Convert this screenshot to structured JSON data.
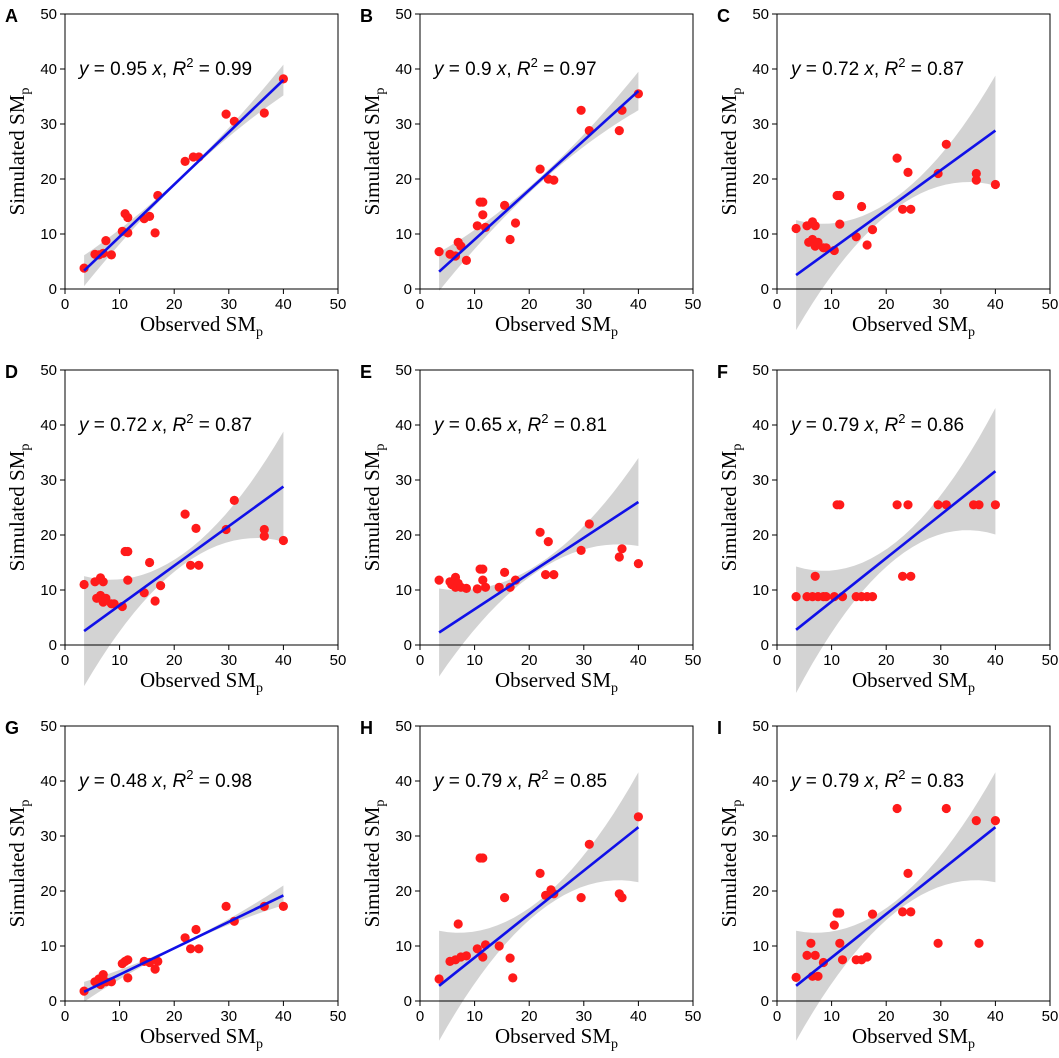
{
  "figure": {
    "panel_count": 9
  },
  "chart_data": [
    {
      "type": "scatter",
      "panel": "A",
      "title": "",
      "xlabel": "Observed SM",
      "xlabel_sub": "p",
      "ylabel": "Simulated SM",
      "ylabel_sub": "p",
      "xlim": [
        0,
        50
      ],
      "ylim": [
        0,
        50
      ],
      "ticks": [
        0,
        10,
        20,
        30,
        40,
        50
      ],
      "grid": false,
      "slope": 0.95,
      "r2": "0.99",
      "band": [
        0.3,
        2.8
      ],
      "eq_parts": {
        "y": "y",
        "mid1": " = 0.95 ",
        "x": "x",
        "mid2": ", ",
        "R": "R",
        "sup": "2",
        "tail": " = 0.99"
      },
      "points": [
        [
          3.5,
          3.8
        ],
        [
          5.5,
          6.3
        ],
        [
          6.2,
          6.2
        ],
        [
          7.5,
          8.8
        ],
        [
          7.0,
          6.5
        ],
        [
          8.5,
          6.2
        ],
        [
          10.5,
          10.5
        ],
        [
          11.0,
          13.7
        ],
        [
          11.5,
          13.0
        ],
        [
          11.5,
          10.2
        ],
        [
          14.5,
          12.8
        ],
        [
          15.5,
          13.2
        ],
        [
          16.5,
          10.2
        ],
        [
          17.0,
          17.0
        ],
        [
          22.0,
          23.2
        ],
        [
          23.5,
          24.0
        ],
        [
          24.5,
          24.0
        ],
        [
          29.5,
          31.8
        ],
        [
          31.0,
          30.5
        ],
        [
          36.5,
          32.0
        ],
        [
          40.0,
          38.2
        ]
      ]
    },
    {
      "type": "scatter",
      "panel": "B",
      "title": "",
      "xlabel": "Observed SM",
      "xlabel_sub": "p",
      "ylabel": "Simulated SM",
      "ylabel_sub": "p",
      "xlim": [
        0,
        50
      ],
      "ylim": [
        0,
        50
      ],
      "ticks": [
        0,
        10,
        20,
        30,
        40,
        50
      ],
      "grid": false,
      "slope": 0.9,
      "r2": "0.97",
      "band": [
        0.5,
        3.5
      ],
      "eq_parts": {
        "y": "y",
        "mid1": " = 0.9 ",
        "x": "x",
        "mid2": ", ",
        "R": "R",
        "sup": "2",
        "tail": " = 0.97"
      },
      "points": [
        [
          3.5,
          6.8
        ],
        [
          5.5,
          6.3
        ],
        [
          6.5,
          6.0
        ],
        [
          7.0,
          8.5
        ],
        [
          7.5,
          7.8
        ],
        [
          8.5,
          5.2
        ],
        [
          10.5,
          11.5
        ],
        [
          11.0,
          15.8
        ],
        [
          11.5,
          15.8
        ],
        [
          11.5,
          13.5
        ],
        [
          12.0,
          11.2
        ],
        [
          15.5,
          15.2
        ],
        [
          16.5,
          9.0
        ],
        [
          17.5,
          12.0
        ],
        [
          22.0,
          21.8
        ],
        [
          23.5,
          20.0
        ],
        [
          24.5,
          19.8
        ],
        [
          29.5,
          32.5
        ],
        [
          31.0,
          28.8
        ],
        [
          36.5,
          28.8
        ],
        [
          37.0,
          32.5
        ],
        [
          40.0,
          35.5
        ]
      ]
    },
    {
      "type": "scatter",
      "panel": "C",
      "title": "",
      "xlabel": "Observed SM",
      "xlabel_sub": "p",
      "ylabel": "Simulated SM",
      "ylabel_sub": "p",
      "xlim": [
        0,
        50
      ],
      "ylim": [
        0,
        50
      ],
      "ticks": [
        0,
        10,
        20,
        30,
        40,
        50
      ],
      "grid": false,
      "slope": 0.72,
      "r2": "0.87",
      "band": [
        1.0,
        10.0
      ],
      "eq_parts": {
        "y": "y",
        "mid1": " = 0.72 ",
        "x": "x",
        "mid2": ", ",
        "R": "R",
        "sup": "2",
        "tail": " = 0.87"
      },
      "points": [
        [
          3.5,
          11.0
        ],
        [
          5.5,
          11.5
        ],
        [
          5.8,
          8.5
        ],
        [
          6.5,
          12.2
        ],
        [
          6.5,
          9.0
        ],
        [
          7.0,
          11.5
        ],
        [
          7.0,
          7.8
        ],
        [
          7.5,
          8.5
        ],
        [
          8.5,
          7.5
        ],
        [
          9.0,
          7.5
        ],
        [
          10.5,
          7.0
        ],
        [
          11.0,
          17.0
        ],
        [
          11.5,
          17.0
        ],
        [
          11.5,
          11.8
        ],
        [
          14.5,
          9.5
        ],
        [
          15.5,
          15.0
        ],
        [
          16.5,
          8.0
        ],
        [
          17.5,
          10.8
        ],
        [
          22.0,
          23.8
        ],
        [
          23.0,
          14.5
        ],
        [
          24.0,
          21.2
        ],
        [
          24.5,
          14.5
        ],
        [
          29.5,
          21.0
        ],
        [
          31.0,
          26.3
        ],
        [
          36.5,
          19.8
        ],
        [
          36.5,
          21.0
        ],
        [
          40.0,
          19.0
        ]
      ]
    },
    {
      "type": "scatter",
      "panel": "D",
      "title": "",
      "xlabel": "Observed SM",
      "xlabel_sub": "p",
      "ylabel": "Simulated SM",
      "ylabel_sub": "p",
      "xlim": [
        0,
        50
      ],
      "ylim": [
        0,
        50
      ],
      "ticks": [
        0,
        10,
        20,
        30,
        40,
        50
      ],
      "grid": false,
      "slope": 0.72,
      "r2": "0.87",
      "band": [
        1.0,
        10.0
      ],
      "eq_parts": {
        "y": "y",
        "mid1": " = 0.72 ",
        "x": "x",
        "mid2": ", ",
        "R": "R",
        "sup": "2",
        "tail": " = 0.87"
      },
      "points": [
        [
          3.5,
          11.0
        ],
        [
          5.5,
          11.5
        ],
        [
          5.8,
          8.5
        ],
        [
          6.5,
          12.2
        ],
        [
          6.5,
          9.0
        ],
        [
          7.0,
          11.5
        ],
        [
          7.0,
          7.8
        ],
        [
          7.5,
          8.5
        ],
        [
          8.5,
          7.5
        ],
        [
          9.0,
          7.5
        ],
        [
          10.5,
          7.0
        ],
        [
          11.0,
          17.0
        ],
        [
          11.5,
          17.0
        ],
        [
          11.5,
          11.8
        ],
        [
          14.5,
          9.5
        ],
        [
          15.5,
          15.0
        ],
        [
          16.5,
          8.0
        ],
        [
          17.5,
          10.8
        ],
        [
          22.0,
          23.8
        ],
        [
          23.0,
          14.5
        ],
        [
          24.0,
          21.2
        ],
        [
          24.5,
          14.5
        ],
        [
          29.5,
          21.0
        ],
        [
          31.0,
          26.3
        ],
        [
          36.5,
          19.8
        ],
        [
          36.5,
          21.0
        ],
        [
          40.0,
          19.0
        ]
      ]
    },
    {
      "type": "scatter",
      "panel": "E",
      "title": "",
      "xlabel": "Observed SM",
      "xlabel_sub": "p",
      "ylabel": "Simulated SM",
      "ylabel_sub": "p",
      "xlim": [
        0,
        50
      ],
      "ylim": [
        0,
        50
      ],
      "ticks": [
        0,
        10,
        20,
        30,
        40,
        50
      ],
      "grid": false,
      "slope": 0.65,
      "r2": "0.81",
      "band": [
        0.6,
        8.0
      ],
      "eq_parts": {
        "y": "y",
        "mid1": " = 0.65 ",
        "x": "x",
        "mid2": ", ",
        "R": "R",
        "sup": "2",
        "tail": " = 0.81"
      },
      "points": [
        [
          3.5,
          11.8
        ],
        [
          5.5,
          11.5
        ],
        [
          5.8,
          11.0
        ],
        [
          6.5,
          12.3
        ],
        [
          6.5,
          10.5
        ],
        [
          7.0,
          11.2
        ],
        [
          7.5,
          10.5
        ],
        [
          8.5,
          10.3
        ],
        [
          10.5,
          10.2
        ],
        [
          11.0,
          13.8
        ],
        [
          11.5,
          13.8
        ],
        [
          11.5,
          11.8
        ],
        [
          12.0,
          10.5
        ],
        [
          14.5,
          10.5
        ],
        [
          15.5,
          13.2
        ],
        [
          16.5,
          10.5
        ],
        [
          17.5,
          11.8
        ],
        [
          22.0,
          20.5
        ],
        [
          23.0,
          12.8
        ],
        [
          23.5,
          18.8
        ],
        [
          24.5,
          12.8
        ],
        [
          29.5,
          17.2
        ],
        [
          31.0,
          22.0
        ],
        [
          36.5,
          16.0
        ],
        [
          37.0,
          17.5
        ],
        [
          40.0,
          14.8
        ]
      ]
    },
    {
      "type": "scatter",
      "panel": "F",
      "title": "",
      "xlabel": "Observed SM",
      "xlabel_sub": "p",
      "ylabel": "Simulated SM",
      "ylabel_sub": "p",
      "xlim": [
        0,
        50
      ],
      "ylim": [
        0,
        50
      ],
      "ticks": [
        0,
        10,
        20,
        30,
        40,
        50
      ],
      "grid": false,
      "slope": 0.79,
      "r2": "0.86",
      "band": [
        1.5,
        11.5
      ],
      "eq_parts": {
        "y": "y",
        "mid1": " = 0.79 ",
        "x": "x",
        "mid2": ", ",
        "R": "R",
        "sup": "2",
        "tail": " = 0.86"
      },
      "points": [
        [
          3.5,
          8.8
        ],
        [
          5.5,
          8.8
        ],
        [
          6.5,
          8.8
        ],
        [
          7.0,
          12.5
        ],
        [
          7.5,
          8.8
        ],
        [
          8.5,
          8.8
        ],
        [
          9.0,
          8.8
        ],
        [
          10.5,
          8.8
        ],
        [
          11.0,
          25.5
        ],
        [
          11.5,
          25.5
        ],
        [
          12.0,
          8.8
        ],
        [
          14.5,
          8.8
        ],
        [
          15.5,
          8.8
        ],
        [
          16.5,
          8.8
        ],
        [
          17.5,
          8.8
        ],
        [
          22.0,
          25.5
        ],
        [
          23.0,
          12.5
        ],
        [
          24.0,
          25.5
        ],
        [
          24.5,
          12.5
        ],
        [
          29.5,
          25.5
        ],
        [
          31.0,
          25.5
        ],
        [
          36.0,
          25.5
        ],
        [
          37.0,
          25.5
        ],
        [
          40.0,
          25.5
        ]
      ]
    },
    {
      "type": "scatter",
      "panel": "G",
      "title": "",
      "xlabel": "Observed SM",
      "xlabel_sub": "p",
      "ylabel": "Simulated SM",
      "ylabel_sub": "p",
      "xlim": [
        0,
        50
      ],
      "ylim": [
        0,
        50
      ],
      "ticks": [
        0,
        10,
        20,
        30,
        40,
        50
      ],
      "grid": false,
      "slope": 0.48,
      "r2": "0.98",
      "band": [
        0.2,
        1.8
      ],
      "eq_parts": {
        "y": "y",
        "mid1": " = 0.48 ",
        "x": "x",
        "mid2": ", ",
        "R": "R",
        "sup": "2",
        "tail": " = 0.98"
      },
      "points": [
        [
          3.5,
          1.8
        ],
        [
          5.5,
          3.5
        ],
        [
          6.2,
          4.0
        ],
        [
          6.5,
          3.0
        ],
        [
          7.0,
          4.8
        ],
        [
          7.5,
          3.5
        ],
        [
          8.5,
          3.5
        ],
        [
          10.5,
          6.8
        ],
        [
          11.0,
          7.2
        ],
        [
          11.5,
          7.5
        ],
        [
          11.5,
          4.2
        ],
        [
          14.5,
          7.2
        ],
        [
          15.5,
          7.0
        ],
        [
          16.5,
          5.8
        ],
        [
          17.0,
          7.2
        ],
        [
          22.0,
          11.5
        ],
        [
          23.0,
          9.5
        ],
        [
          24.0,
          13.0
        ],
        [
          24.5,
          9.5
        ],
        [
          29.5,
          17.2
        ],
        [
          31.0,
          14.5
        ],
        [
          36.5,
          17.2
        ],
        [
          40.0,
          17.2
        ]
      ]
    },
    {
      "type": "scatter",
      "panel": "H",
      "title": "",
      "xlabel": "Observed SM",
      "xlabel_sub": "p",
      "ylabel": "Simulated SM",
      "ylabel_sub": "p",
      "xlim": [
        0,
        50
      ],
      "ylim": [
        0,
        50
      ],
      "ticks": [
        0,
        10,
        20,
        30,
        40,
        50
      ],
      "grid": false,
      "slope": 0.79,
      "r2": "0.85",
      "band": [
        1.0,
        10.0
      ],
      "eq_parts": {
        "y": "y",
        "mid1": " = 0.79 ",
        "x": "x",
        "mid2": ", ",
        "R": "R",
        "sup": "2",
        "tail": " = 0.85"
      },
      "points": [
        [
          3.5,
          4.0
        ],
        [
          5.5,
          7.2
        ],
        [
          6.5,
          7.5
        ],
        [
          7.0,
          14.0
        ],
        [
          7.5,
          8.0
        ],
        [
          8.5,
          8.2
        ],
        [
          10.5,
          9.5
        ],
        [
          11.0,
          26.0
        ],
        [
          11.5,
          26.0
        ],
        [
          11.5,
          8.0
        ],
        [
          12.0,
          10.2
        ],
        [
          14.5,
          10.0
        ],
        [
          15.5,
          18.8
        ],
        [
          16.5,
          7.8
        ],
        [
          17.0,
          4.2
        ],
        [
          22.0,
          23.2
        ],
        [
          23.0,
          19.2
        ],
        [
          24.0,
          20.2
        ],
        [
          24.5,
          19.5
        ],
        [
          29.5,
          18.8
        ],
        [
          31.0,
          28.5
        ],
        [
          36.5,
          19.5
        ],
        [
          37.0,
          18.8
        ],
        [
          40.0,
          33.5
        ]
      ]
    },
    {
      "type": "scatter",
      "panel": "I",
      "title": "",
      "xlabel": "Observed SM",
      "xlabel_sub": "p",
      "ylabel": "Simulated SM",
      "ylabel_sub": "p",
      "xlim": [
        0,
        50
      ],
      "ylim": [
        0,
        50
      ],
      "ticks": [
        0,
        10,
        20,
        30,
        40,
        50
      ],
      "grid": false,
      "slope": 0.79,
      "r2": "0.83",
      "band": [
        1.0,
        10.0
      ],
      "eq_parts": {
        "y": "y",
        "mid1": " = 0.79 ",
        "x": "x",
        "mid2": ", ",
        "R": "R",
        "sup": "2",
        "tail": " = 0.83"
      },
      "points": [
        [
          3.5,
          4.3
        ],
        [
          5.5,
          8.3
        ],
        [
          6.2,
          10.5
        ],
        [
          6.5,
          4.5
        ],
        [
          7.0,
          8.3
        ],
        [
          7.5,
          4.5
        ],
        [
          8.5,
          7.0
        ],
        [
          10.5,
          13.8
        ],
        [
          11.0,
          16.0
        ],
        [
          11.5,
          16.0
        ],
        [
          11.5,
          10.5
        ],
        [
          12.0,
          7.5
        ],
        [
          14.5,
          7.5
        ],
        [
          15.5,
          7.5
        ],
        [
          16.5,
          8.0
        ],
        [
          17.5,
          15.8
        ],
        [
          22.0,
          35.0
        ],
        [
          23.0,
          16.2
        ],
        [
          24.0,
          23.2
        ],
        [
          24.5,
          16.2
        ],
        [
          29.5,
          10.5
        ],
        [
          31.0,
          35.0
        ],
        [
          36.5,
          32.8
        ],
        [
          37.0,
          10.5
        ],
        [
          40.0,
          32.8
        ]
      ]
    }
  ]
}
